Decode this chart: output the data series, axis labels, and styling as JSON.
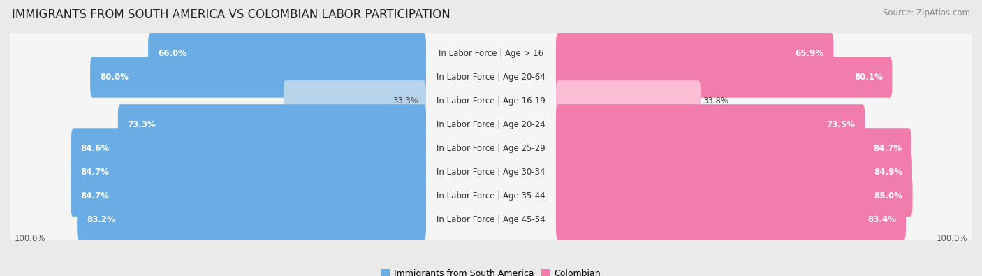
{
  "title": "IMMIGRANTS FROM SOUTH AMERICA VS COLOMBIAN LABOR PARTICIPATION",
  "source": "Source: ZipAtlas.com",
  "categories": [
    "In Labor Force | Age > 16",
    "In Labor Force | Age 20-64",
    "In Labor Force | Age 16-19",
    "In Labor Force | Age 20-24",
    "In Labor Force | Age 25-29",
    "In Labor Force | Age 30-34",
    "In Labor Force | Age 35-44",
    "In Labor Force | Age 45-54"
  ],
  "south_america_values": [
    66.0,
    80.0,
    33.3,
    73.3,
    84.6,
    84.7,
    84.7,
    83.2
  ],
  "colombian_values": [
    65.9,
    80.1,
    33.8,
    73.5,
    84.7,
    84.9,
    85.0,
    83.4
  ],
  "south_america_color": "#6aade4",
  "colombian_color": "#f07dab",
  "south_america_color_light": "#b8d4eb",
  "colombian_color_light": "#f9bdd4",
  "background_color": "#eaeaea",
  "bar_bg_color": "#f5f5f5",
  "max_value": 100.0,
  "legend_label_sa": "Immigrants from South America",
  "legend_label_co": "Colombian",
  "title_fontsize": 12,
  "label_fontsize": 8.5,
  "axis_label_fontsize": 8.5,
  "source_fontsize": 8.5
}
